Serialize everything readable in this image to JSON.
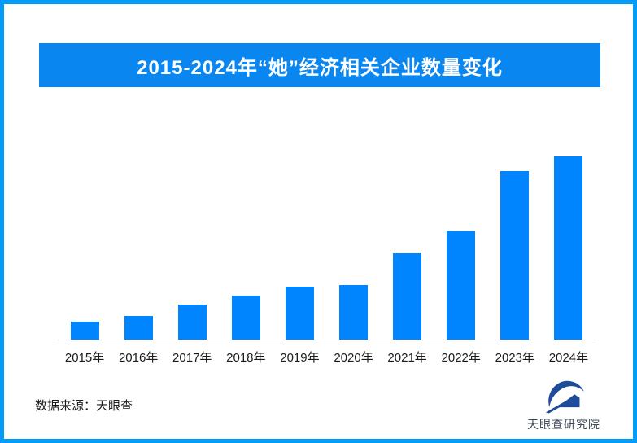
{
  "colors": {
    "frame_border": "#009cf8",
    "banner_bg": "#0a86f0",
    "banner_text": "#ffffff",
    "bar": "#0085ff",
    "axis_line": "#dcdcdc",
    "axis_text": "#1a1a1a",
    "logo_mark": "#1e4c9b",
    "logo_text": "#3c4857"
  },
  "banner": {
    "title": "2015-2024年“她”经济相关企业数量变化"
  },
  "chart_data": {
    "type": "bar",
    "title": "2015-2024年“她”经济相关企业数量变化",
    "categories": [
      "2015年",
      "2016年",
      "2017年",
      "2018年",
      "2019年",
      "2020年",
      "2021年",
      "2022年",
      "2023年",
      "2024年"
    ],
    "values": [
      10,
      13,
      19,
      24,
      29,
      30,
      47,
      59,
      92,
      100
    ],
    "values_note": "no numeric axis or data labels visible; values estimated from bar heights, normalized so 2024 = 100",
    "xlabel": "",
    "ylabel": "",
    "ylim": [
      0,
      110
    ],
    "grid": false,
    "legend": false,
    "y_axis_labels_visible": false,
    "value_labels_visible": false,
    "bar_color": "#0085ff"
  },
  "footer": {
    "source": "数据来源：天眼查",
    "logo_label": "天眼查研究院"
  }
}
